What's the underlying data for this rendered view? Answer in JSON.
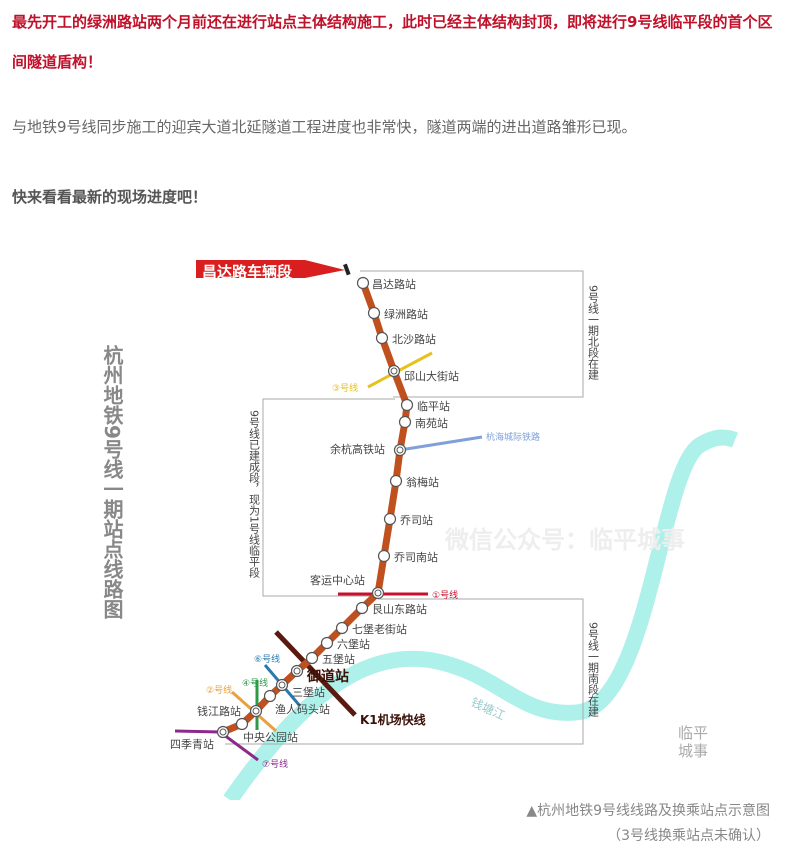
{
  "article": {
    "headline": "最先开工的绿洲路站两个月前还在进行站点主体结构施工，此时已经主体结构封顶，即将进行9号线临平段的首个区间隧道盾构！",
    "paragraph": "与地铁9号线同步施工的迎宾大道北延隧道工程进度也非常快，隧道两端的进出道路雏形已现。",
    "callout": "快来看看最新的现场进度吧！"
  },
  "map": {
    "title": "杭州地铁9号线一期站点线路图",
    "depot": "昌达路车辆段",
    "north_note": "9号线一期北段在建",
    "middle_note": "9号线已建成段，现为1号线临平段",
    "south_note": "9号线一期南段在建",
    "watermark": "微信公众号：临平城事",
    "logo": "临平城事",
    "river": "钱塘江",
    "stations": [
      "昌达路站",
      "绿洲路站",
      "北沙路站",
      "邱山大街站",
      "临平站",
      "南苑站",
      "余杭高铁站",
      "翁梅站",
      "乔司站",
      "乔司南站",
      "客运中心站",
      "艮山东路站",
      "七堡老街站",
      "六堡站",
      "五堡站",
      "御道站",
      "三堡站",
      "渔人码头站",
      "钱江路站",
      "中央公园站",
      "四季青站"
    ],
    "lines": {
      "l3": "③号线",
      "intercity": "杭海城际铁路",
      "l1": "①号线",
      "l6": "⑥号线",
      "l4": "④号线",
      "l2": "②号线",
      "l7": "⑦号线",
      "k1": "K1机场快线"
    },
    "colors": {
      "line9": "#c0501e",
      "l3": "#e8c020",
      "intercity": "#7fa0d8",
      "l1": "#c8102e",
      "l6": "#2a7ab0",
      "l4": "#2e9a48",
      "l2": "#e8a040",
      "l7": "#8a2a8a",
      "k1": "#5a1a10",
      "river": "#aef0ea"
    }
  },
  "caption": {
    "line1": "▲杭州地铁9号线线路及换乘站点示意图",
    "line2": "（3号线换乘站点未确认）"
  }
}
